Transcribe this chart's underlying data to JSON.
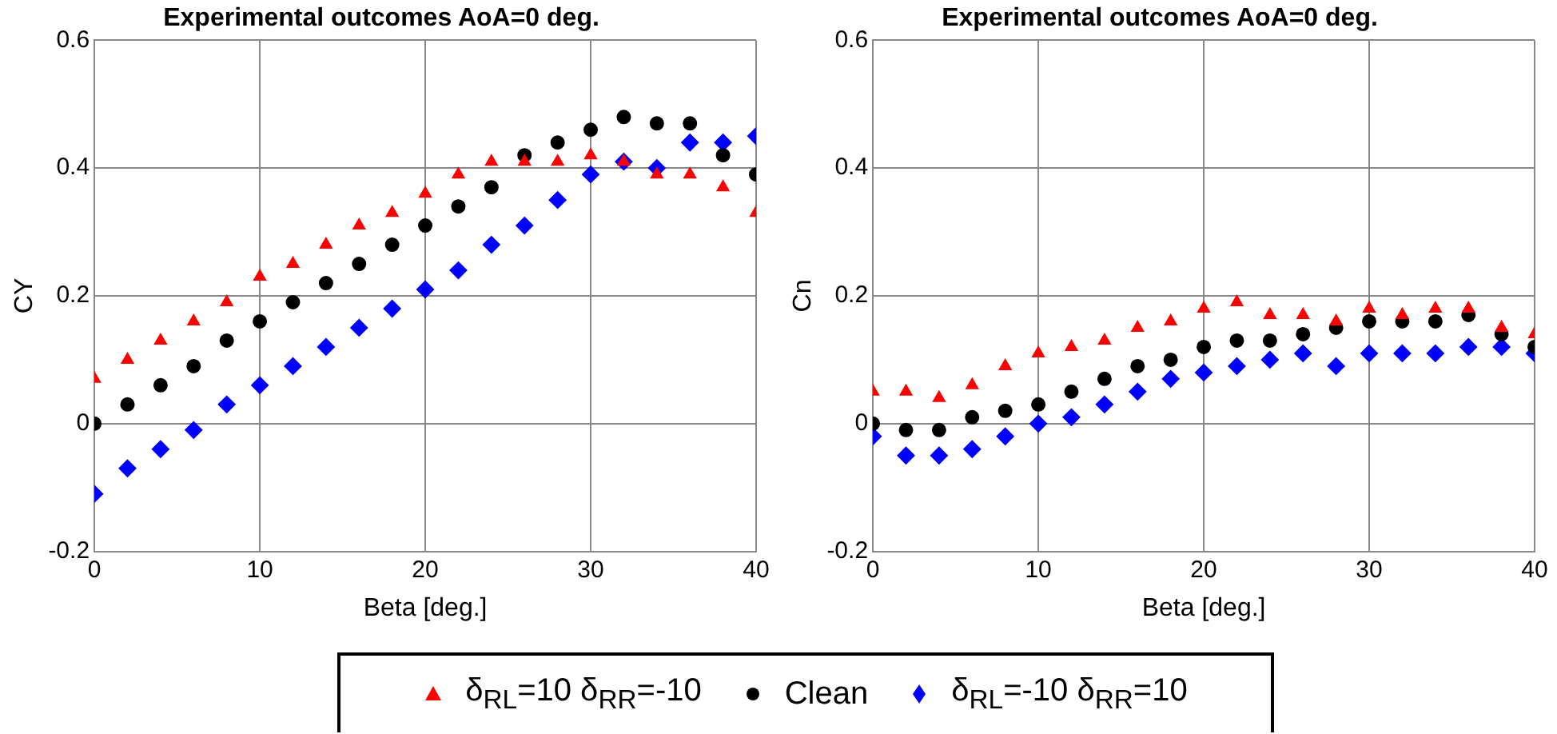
{
  "chart_data": [
    {
      "type": "scatter",
      "title": "Experimental outcomes AoA=0 deg.",
      "xlabel": "Beta [deg.]",
      "ylabel": "CY",
      "xlim": [
        0,
        40
      ],
      "xticks": [
        0,
        10,
        20,
        30,
        40
      ],
      "ylim": [
        -0.2,
        0.6
      ],
      "yticks": [
        -0.2,
        0,
        0.2,
        0.4,
        0.6
      ],
      "grid": true,
      "legend": "bottom",
      "x": [
        0,
        2,
        4,
        6,
        8,
        10,
        12,
        14,
        16,
        18,
        20,
        22,
        24,
        26,
        28,
        30,
        32,
        34,
        36,
        38,
        40
      ],
      "series": [
        {
          "name": "δ$_{RL}$=10  δ$_{RR}$=-10",
          "color": "#ff0000",
          "marker": "triangle",
          "values": [
            0.07,
            0.1,
            0.13,
            0.16,
            0.19,
            0.23,
            0.25,
            0.28,
            0.31,
            0.33,
            0.36,
            0.39,
            0.41,
            0.41,
            0.41,
            0.42,
            0.41,
            0.39,
            0.39,
            0.37,
            0.33
          ]
        },
        {
          "name": "Clean",
          "color": "#000000",
          "marker": "circle",
          "values": [
            0.0,
            0.03,
            0.06,
            0.09,
            0.13,
            0.16,
            0.19,
            0.22,
            0.25,
            0.28,
            0.31,
            0.34,
            0.37,
            0.42,
            0.44,
            0.46,
            0.48,
            0.47,
            0.47,
            0.42,
            0.39
          ]
        },
        {
          "name": "δ$_{RL}$=-10  δ$_{RR}$=10",
          "color": "#0000ff",
          "marker": "diamond",
          "values": [
            -0.11,
            -0.07,
            -0.04,
            -0.01,
            0.03,
            0.06,
            0.09,
            0.12,
            0.15,
            0.18,
            0.21,
            0.24,
            0.28,
            0.31,
            0.35,
            0.39,
            0.41,
            0.4,
            0.44,
            0.44,
            0.45
          ]
        }
      ]
    },
    {
      "type": "scatter",
      "title": "Experimental outcomes AoA=0 deg.",
      "xlabel": "Beta [deg.]",
      "ylabel": "Cn",
      "xlim": [
        0,
        40
      ],
      "xticks": [
        0,
        10,
        20,
        30,
        40
      ],
      "ylim": [
        -0.2,
        0.6
      ],
      "yticks": [
        -0.2,
        0,
        0.2,
        0.4,
        0.6
      ],
      "grid": true,
      "x": [
        0,
        2,
        4,
        6,
        8,
        10,
        12,
        14,
        16,
        18,
        20,
        22,
        24,
        26,
        28,
        30,
        32,
        34,
        36,
        38,
        40
      ],
      "series": [
        {
          "color": "#ff0000",
          "marker": "triangle",
          "values": [
            0.05,
            0.05,
            0.04,
            0.06,
            0.09,
            0.11,
            0.12,
            0.13,
            0.15,
            0.16,
            0.18,
            0.19,
            0.17,
            0.17,
            0.16,
            0.18,
            0.17,
            0.18,
            0.18,
            0.15,
            0.14
          ]
        },
        {
          "color": "#000000",
          "marker": "circle",
          "values": [
            0.0,
            -0.01,
            -0.01,
            0.01,
            0.02,
            0.03,
            0.05,
            0.07,
            0.09,
            0.1,
            0.12,
            0.13,
            0.13,
            0.14,
            0.15,
            0.16,
            0.16,
            0.16,
            0.17,
            0.14,
            0.12
          ]
        },
        {
          "color": "#0000ff",
          "marker": "diamond",
          "values": [
            -0.02,
            -0.05,
            -0.05,
            -0.04,
            -0.02,
            0.0,
            0.01,
            0.03,
            0.05,
            0.07,
            0.08,
            0.09,
            0.1,
            0.11,
            0.09,
            0.11,
            0.11,
            0.11,
            0.12,
            0.12,
            0.11
          ]
        }
      ]
    }
  ]
}
